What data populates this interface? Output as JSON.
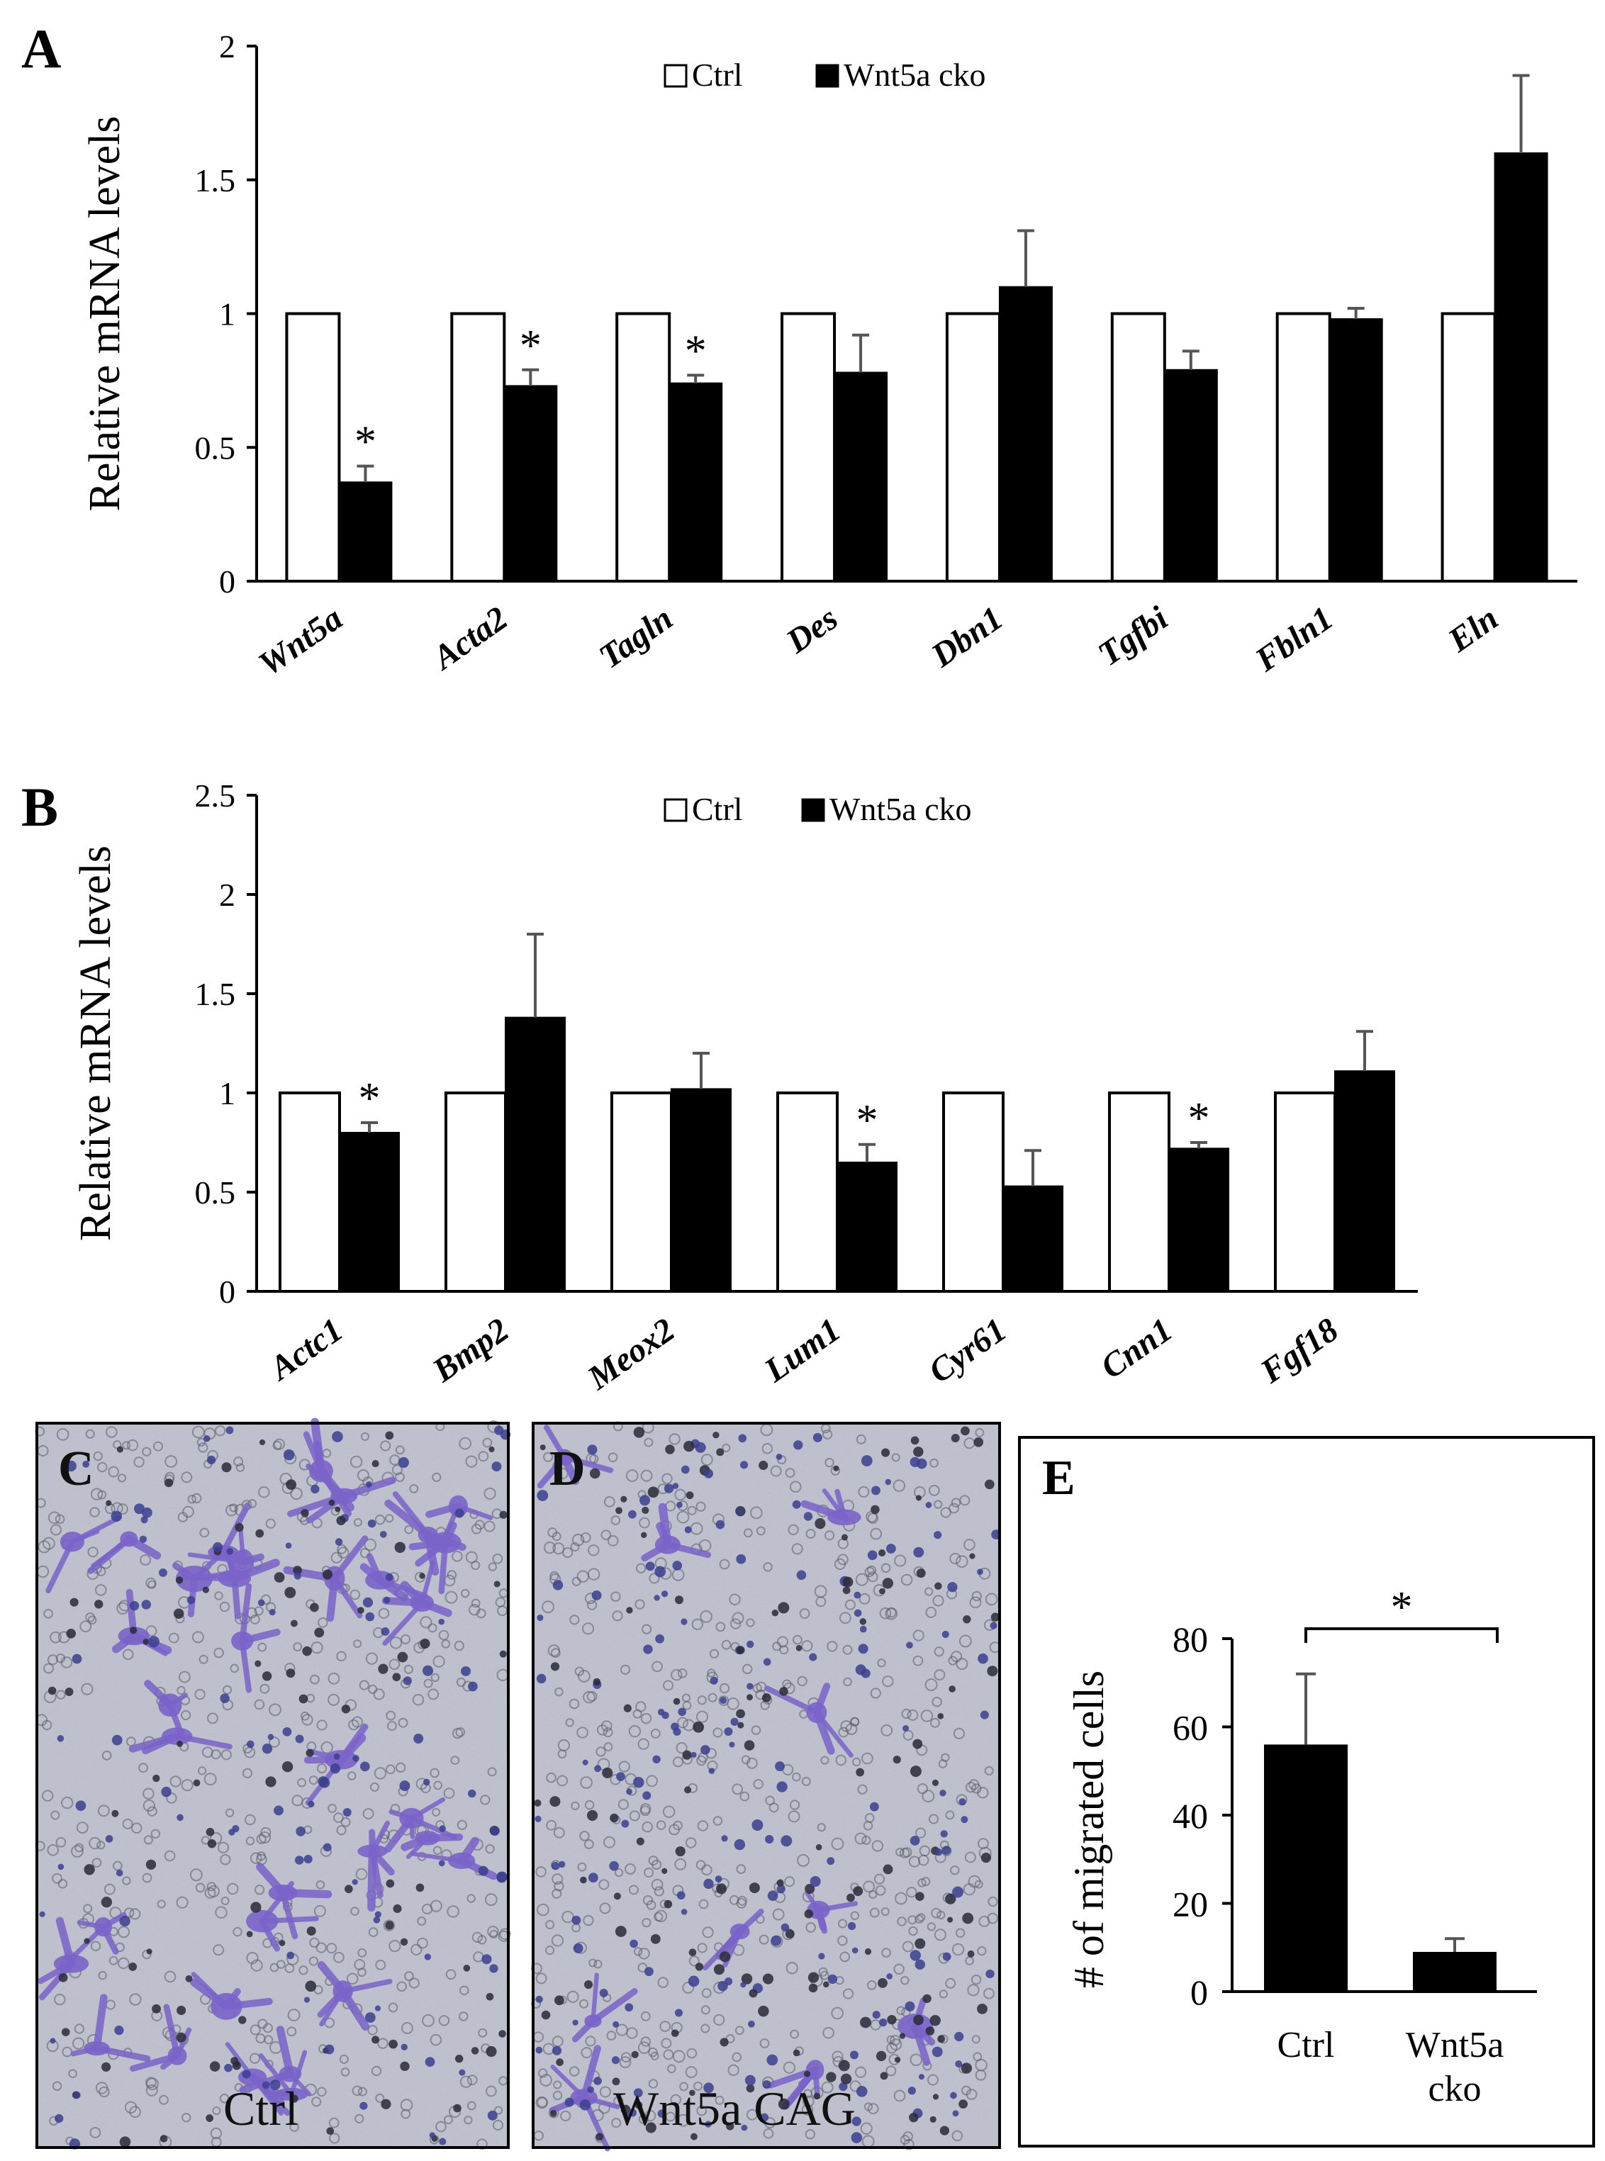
{
  "figure": {
    "panel_labels": [
      "A",
      "B",
      "C",
      "D",
      "E"
    ],
    "photo_captions": {
      "C": "Ctrl",
      "D": "Wnt5a CAG"
    }
  },
  "legend": {
    "ctrl": "Ctrl",
    "cko": "Wnt5a cko"
  },
  "colors": {
    "ctrl_fill": "#ffffff",
    "cko_fill": "#000000",
    "stain": "#7a63c9",
    "photo_bg": "#c8ccd6"
  },
  "chart_data": [
    {
      "panel": "A",
      "type": "bar",
      "ylabel": "Relative mRNA levels",
      "ylim": [
        0,
        2
      ],
      "yticks": [
        {
          "v": 0,
          "label": "0"
        },
        {
          "v": 0.5,
          "label": "0.5"
        },
        {
          "v": 1,
          "label": "1"
        },
        {
          "v": 1.5,
          "label": "1.5"
        },
        {
          "v": 2,
          "label": "2"
        }
      ],
      "categories": [
        "Wnt5a",
        "Acta2",
        "Tagln",
        "Des",
        "Dbn1",
        "Tgfbi",
        "Fbln1",
        "Eln"
      ],
      "legend_position": "top",
      "series": [
        {
          "name": "Ctrl",
          "values": [
            1,
            1,
            1,
            1,
            1,
            1,
            1,
            1
          ],
          "errors": [
            0,
            0,
            0,
            0,
            0,
            0,
            0,
            0
          ]
        },
        {
          "name": "Wnt5a cko",
          "values": [
            0.37,
            0.73,
            0.74,
            0.78,
            1.1,
            0.79,
            0.98,
            1.6
          ],
          "errors": [
            0.06,
            0.06,
            0.03,
            0.14,
            0.21,
            0.07,
            0.04,
            0.29
          ]
        }
      ],
      "significance": [
        {
          "index": 0,
          "label": "*"
        },
        {
          "index": 1,
          "label": "*"
        },
        {
          "index": 2,
          "label": "*"
        }
      ]
    },
    {
      "panel": "B",
      "type": "bar",
      "ylabel": "Relative mRNA levels",
      "ylim": [
        0,
        2.5
      ],
      "yticks": [
        {
          "v": 0,
          "label": "0"
        },
        {
          "v": 0.5,
          "label": "0.5"
        },
        {
          "v": 1,
          "label": "1"
        },
        {
          "v": 1.5,
          "label": "1.5"
        },
        {
          "v": 2,
          "label": "2"
        },
        {
          "v": 2.5,
          "label": "2.5"
        }
      ],
      "categories": [
        "Actc1",
        "Bmp2",
        "Meox2",
        "Lum1",
        "Cyr61",
        "Cnn1",
        "Fgf18"
      ],
      "legend_position": "top",
      "series": [
        {
          "name": "Ctrl",
          "values": [
            1,
            1,
            1,
            1,
            1,
            1,
            1
          ],
          "errors": [
            0,
            0,
            0,
            0,
            0,
            0,
            0
          ]
        },
        {
          "name": "Wnt5a cko",
          "values": [
            0.8,
            1.38,
            1.02,
            0.65,
            0.53,
            0.72,
            1.11
          ],
          "errors": [
            0.05,
            0.42,
            0.18,
            0.09,
            0.18,
            0.03,
            0.2
          ]
        }
      ],
      "significance": [
        {
          "index": 0,
          "label": "*"
        },
        {
          "index": 3,
          "label": "*"
        },
        {
          "index": 5,
          "label": "*"
        }
      ]
    },
    {
      "panel": "E",
      "type": "bar",
      "ylabel": "# of migrated cells",
      "ylim": [
        0,
        80
      ],
      "yticks": [
        {
          "v": 0,
          "label": "0"
        },
        {
          "v": 20,
          "label": "20"
        },
        {
          "v": 40,
          "label": "40"
        },
        {
          "v": 60,
          "label": "60"
        },
        {
          "v": 80,
          "label": "80"
        }
      ],
      "categories": [
        "Ctrl",
        "Wnt5a cko"
      ],
      "category_lines": [
        [
          "Ctrl"
        ],
        [
          "Wnt5a",
          "cko"
        ]
      ],
      "values": [
        56,
        9
      ],
      "errors": [
        16,
        3
      ],
      "significance_bracket": {
        "from": 0,
        "to": 1,
        "label": "*"
      }
    }
  ]
}
